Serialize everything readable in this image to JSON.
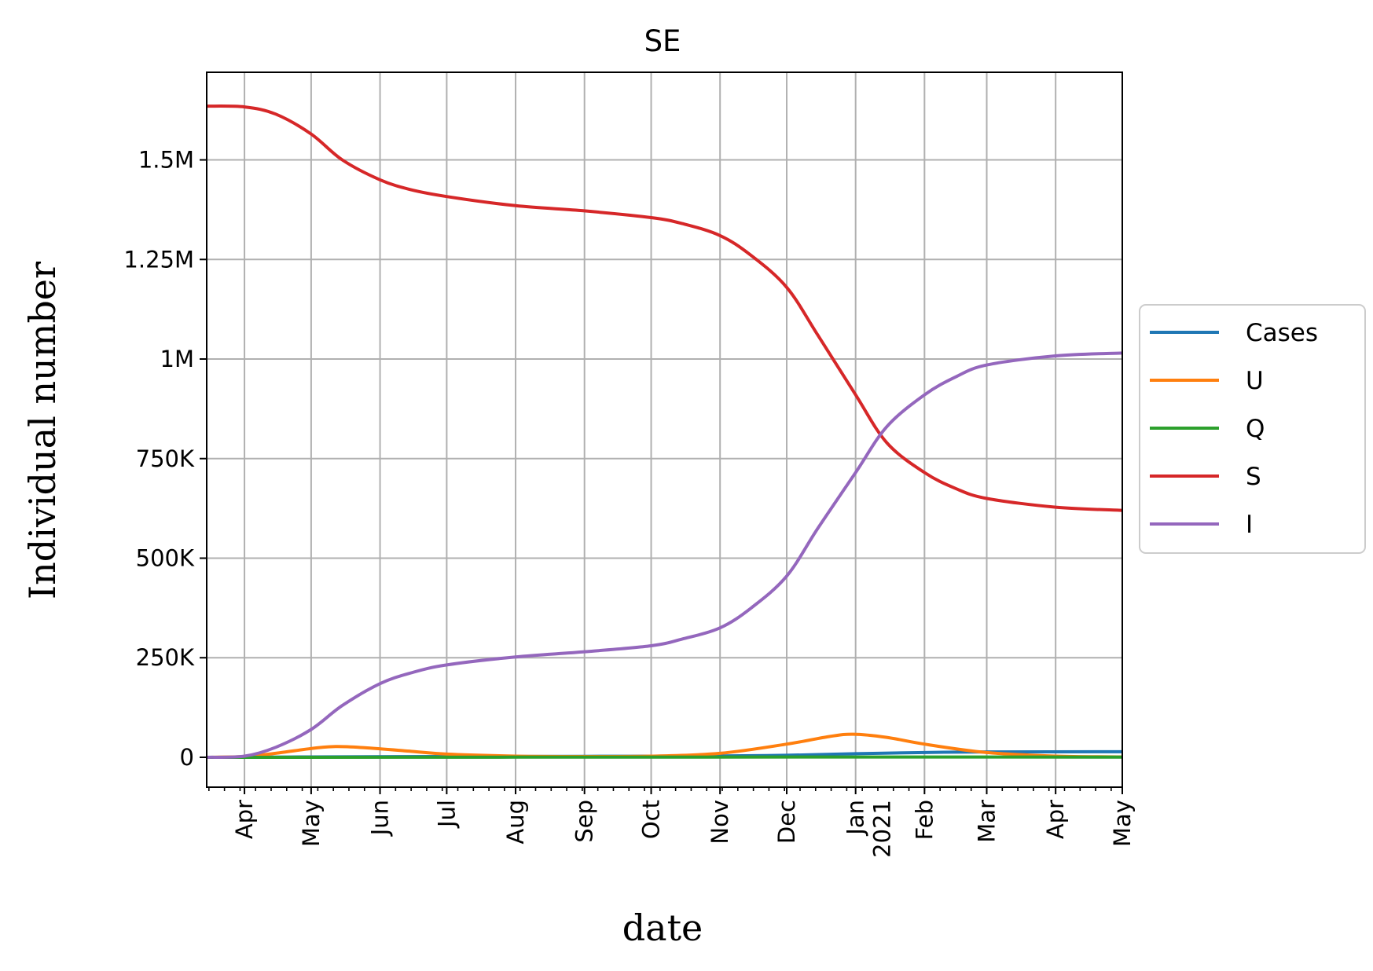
{
  "chart_data": {
    "type": "line",
    "title": "SE",
    "xlabel": "date",
    "ylabel": "Individual number",
    "grid": true,
    "legend_position": "center-right outside",
    "x_range": [
      "2020-03-15",
      "2021-05-01"
    ],
    "ylim": [
      -75000,
      1720000
    ],
    "y_ticks": [
      {
        "value": 0,
        "label": "0"
      },
      {
        "value": 250000,
        "label": "250K"
      },
      {
        "value": 500000,
        "label": "500K"
      },
      {
        "value": 750000,
        "label": "750K"
      },
      {
        "value": 1000000,
        "label": "1M"
      },
      {
        "value": 1250000,
        "label": "1.25M"
      },
      {
        "value": 1500000,
        "label": "1.5M"
      }
    ],
    "x_ticks": [
      {
        "date": "2020-04-01",
        "label": "Apr"
      },
      {
        "date": "2020-05-01",
        "label": "May"
      },
      {
        "date": "2020-06-01",
        "label": "Jun"
      },
      {
        "date": "2020-07-01",
        "label": "Jul"
      },
      {
        "date": "2020-08-01",
        "label": "Aug"
      },
      {
        "date": "2020-09-01",
        "label": "Sep"
      },
      {
        "date": "2020-10-01",
        "label": "Oct"
      },
      {
        "date": "2020-11-01",
        "label": "Nov"
      },
      {
        "date": "2020-12-01",
        "label": "Dec"
      },
      {
        "date": "2021-01-01",
        "label": "Jan",
        "label2": "2021"
      },
      {
        "date": "2021-02-01",
        "label": "Feb"
      },
      {
        "date": "2021-03-01",
        "label": "Mar"
      },
      {
        "date": "2021-04-01",
        "label": "Apr"
      },
      {
        "date": "2021-05-01",
        "label": "May"
      }
    ],
    "series": [
      {
        "name": "Cases",
        "color": "#1f77b4",
        "points": [
          [
            "2020-03-15",
            0
          ],
          [
            "2020-05-01",
            1000
          ],
          [
            "2020-07-01",
            2000
          ],
          [
            "2020-09-01",
            2500
          ],
          [
            "2020-11-01",
            3500
          ],
          [
            "2020-12-01",
            5000
          ],
          [
            "2021-01-01",
            9000
          ],
          [
            "2021-02-01",
            12000
          ],
          [
            "2021-03-01",
            13500
          ],
          [
            "2021-05-01",
            14000
          ]
        ]
      },
      {
        "name": "U",
        "color": "#ff7f0e",
        "points": [
          [
            "2020-03-15",
            0
          ],
          [
            "2020-04-01",
            2000
          ],
          [
            "2020-04-15",
            10000
          ],
          [
            "2020-05-01",
            22000
          ],
          [
            "2020-05-12",
            27000
          ],
          [
            "2020-05-25",
            24000
          ],
          [
            "2020-06-15",
            15000
          ],
          [
            "2020-07-01",
            8000
          ],
          [
            "2020-08-01",
            3000
          ],
          [
            "2020-09-01",
            2000
          ],
          [
            "2020-10-01",
            3000
          ],
          [
            "2020-11-01",
            10000
          ],
          [
            "2020-12-01",
            33000
          ],
          [
            "2020-12-20",
            52000
          ],
          [
            "2020-12-31",
            58000
          ],
          [
            "2021-01-15",
            50000
          ],
          [
            "2021-02-01",
            33000
          ],
          [
            "2021-03-01",
            12000
          ],
          [
            "2021-04-01",
            3000
          ],
          [
            "2021-05-01",
            1000
          ]
        ]
      },
      {
        "name": "Q",
        "color": "#2ca02c",
        "points": [
          [
            "2020-03-15",
            0
          ],
          [
            "2020-08-01",
            300
          ],
          [
            "2021-01-01",
            800
          ],
          [
            "2021-05-01",
            400
          ]
        ]
      },
      {
        "name": "S",
        "color": "#d62728",
        "points": [
          [
            "2020-03-15",
            1635000
          ],
          [
            "2020-04-01",
            1633000
          ],
          [
            "2020-04-15",
            1615000
          ],
          [
            "2020-05-01",
            1565000
          ],
          [
            "2020-05-15",
            1500000
          ],
          [
            "2020-06-01",
            1450000
          ],
          [
            "2020-06-15",
            1425000
          ],
          [
            "2020-07-01",
            1408000
          ],
          [
            "2020-08-01",
            1385000
          ],
          [
            "2020-09-01",
            1372000
          ],
          [
            "2020-10-01",
            1355000
          ],
          [
            "2020-10-15",
            1340000
          ],
          [
            "2020-11-01",
            1310000
          ],
          [
            "2020-11-15",
            1260000
          ],
          [
            "2020-12-01",
            1180000
          ],
          [
            "2020-12-15",
            1060000
          ],
          [
            "2021-01-01",
            910000
          ],
          [
            "2021-01-15",
            790000
          ],
          [
            "2021-02-01",
            715000
          ],
          [
            "2021-02-15",
            675000
          ],
          [
            "2021-03-01",
            650000
          ],
          [
            "2021-04-01",
            628000
          ],
          [
            "2021-05-01",
            620000
          ]
        ]
      },
      {
        "name": "I",
        "color": "#9467bd",
        "points": [
          [
            "2020-03-15",
            0
          ],
          [
            "2020-04-01",
            3000
          ],
          [
            "2020-04-15",
            25000
          ],
          [
            "2020-05-01",
            70000
          ],
          [
            "2020-05-15",
            130000
          ],
          [
            "2020-06-01",
            185000
          ],
          [
            "2020-06-15",
            212000
          ],
          [
            "2020-07-01",
            232000
          ],
          [
            "2020-08-01",
            252000
          ],
          [
            "2020-09-01",
            265000
          ],
          [
            "2020-10-01",
            280000
          ],
          [
            "2020-10-15",
            297000
          ],
          [
            "2020-11-01",
            325000
          ],
          [
            "2020-11-15",
            375000
          ],
          [
            "2020-12-01",
            455000
          ],
          [
            "2020-12-15",
            575000
          ],
          [
            "2021-01-01",
            715000
          ],
          [
            "2021-01-15",
            830000
          ],
          [
            "2021-02-01",
            910000
          ],
          [
            "2021-02-15",
            955000
          ],
          [
            "2021-03-01",
            985000
          ],
          [
            "2021-04-01",
            1008000
          ],
          [
            "2021-05-01",
            1015000
          ]
        ]
      }
    ]
  }
}
